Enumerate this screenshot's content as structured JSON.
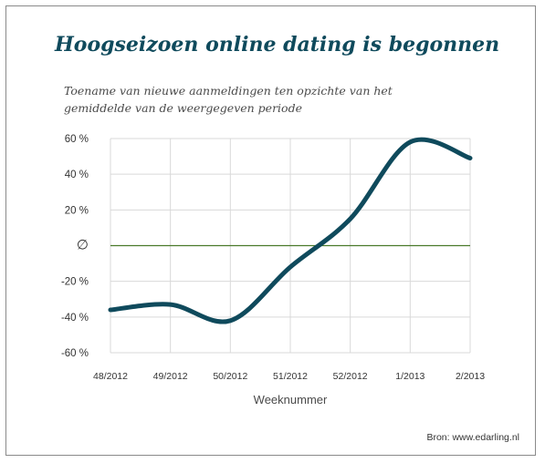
{
  "chart_data": {
    "type": "line",
    "title": "Hoogseizoen online dating is begonnen",
    "subtitle_lines": [
      "Toename van nieuwe aanmeldingen ten opzichte van het",
      "gemiddelde van de weergegeven periode"
    ],
    "xlabel": "Weeknummer",
    "ylabel": "",
    "categories": [
      "48/2012",
      "49/2012",
      "50/2012",
      "51/2012",
      "52/2012",
      "1/2013",
      "2/2013"
    ],
    "series": [
      {
        "values": [
          -36,
          -33,
          -42,
          -12,
          15,
          58,
          49
        ],
        "color": "#0f4a5c"
      }
    ],
    "ylim": [
      -60,
      60
    ],
    "yticks": [
      60,
      40,
      20,
      0,
      -20,
      -40,
      -60
    ],
    "ytick_labels": [
      "60 %",
      "40 %",
      "20 %",
      "∅",
      "-20 %",
      "-40 %",
      "-60 %"
    ],
    "zero_line_color": "#4a7a2a",
    "grid": true,
    "legend": "none"
  },
  "source": "Bron: www.edarling.nl"
}
